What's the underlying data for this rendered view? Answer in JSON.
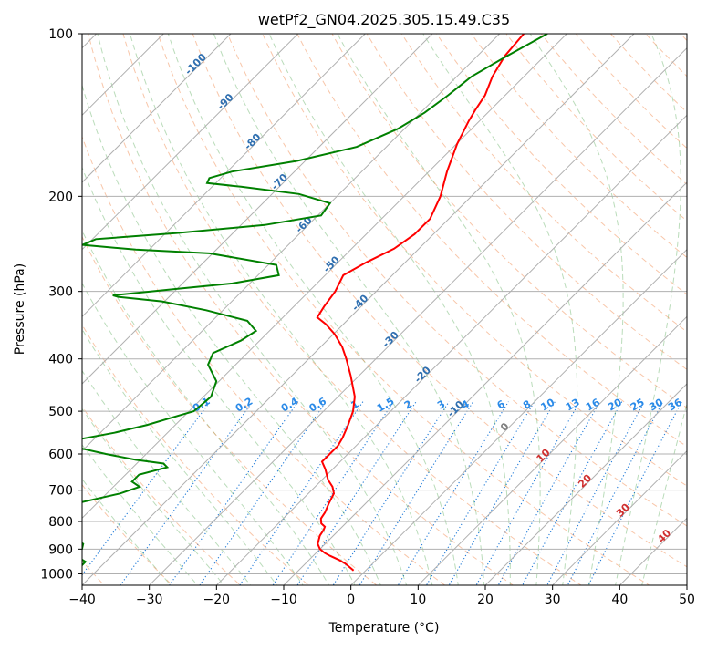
{
  "chart_data": {
    "type": "line",
    "subtype": "skew-t log-p",
    "title": "wetPf2_GN04.2025.305.15.49.C35",
    "xlabel": "Temperature (°C)",
    "ylabel": "Pressure (hPa)",
    "xlim": [
      -40,
      50
    ],
    "ylim": [
      1050,
      100
    ],
    "y_scale": "log",
    "grid": true,
    "x_ticks": [
      "−40",
      "−30",
      "−20",
      "−10",
      "0",
      "10",
      "20",
      "30",
      "40",
      "50"
    ],
    "y_ticks": [
      "100",
      "200",
      "300",
      "400",
      "500",
      "600",
      "700",
      "800",
      "900",
      "1000"
    ],
    "dry_adiabat_labels": [
      "-100",
      "-90",
      "-80",
      "-70",
      "-60",
      "-50",
      "-40",
      "-30",
      "-20",
      "-10"
    ],
    "moist_adiabat_labels": [
      "0",
      "10",
      "20",
      "30",
      "40"
    ],
    "mixing_ratio_labels": [
      "0.1",
      "0.2",
      "0.4",
      "0.6",
      "1",
      "1.5",
      "2",
      "3",
      "4",
      "6",
      "8",
      "10",
      "13",
      "16",
      "20",
      "25",
      "30",
      "36"
    ],
    "series": [
      {
        "label": "temperature",
        "color": "#ff0000",
        "points": [
          [
            986,
            -1.8
          ],
          [
            958,
            -4.0
          ],
          [
            943,
            -5.5
          ],
          [
            926,
            -7.5
          ],
          [
            915,
            -8.7
          ],
          [
            900,
            -10.0
          ],
          [
            880,
            -11.1
          ],
          [
            860,
            -11.7
          ],
          [
            850,
            -12.0
          ],
          [
            830,
            -12.3
          ],
          [
            818,
            -12.6
          ],
          [
            807,
            -13.6
          ],
          [
            790,
            -14.4
          ],
          [
            770,
            -14.7
          ],
          [
            740,
            -15.5
          ],
          [
            710,
            -16.2
          ],
          [
            690,
            -17.4
          ],
          [
            670,
            -19.1
          ],
          [
            640,
            -21.1
          ],
          [
            620,
            -22.7
          ],
          [
            600,
            -22.7
          ],
          [
            580,
            -22.7
          ],
          [
            560,
            -23.2
          ],
          [
            530,
            -24.3
          ],
          [
            500,
            -25.6
          ],
          [
            470,
            -27.5
          ],
          [
            430,
            -31.2
          ],
          [
            400,
            -34.4
          ],
          [
            380,
            -36.8
          ],
          [
            360,
            -39.8
          ],
          [
            345,
            -42.6
          ],
          [
            335,
            -44.9
          ],
          [
            320,
            -45.5
          ],
          [
            300,
            -46.1
          ],
          [
            280,
            -47.3
          ],
          [
            265,
            -45.8
          ],
          [
            250,
            -43.7
          ],
          [
            235,
            -42.8
          ],
          [
            220,
            -42.8
          ],
          [
            200,
            -44.6
          ],
          [
            180,
            -47.3
          ],
          [
            160,
            -49.9
          ],
          [
            145,
            -51.6
          ],
          [
            138,
            -52.3
          ],
          [
            130,
            -53.0
          ],
          [
            120,
            -54.7
          ],
          [
            110,
            -55.9
          ],
          [
            100,
            -56.4
          ]
        ]
      },
      {
        "label": "dewpoint",
        "color": "#008000",
        "points": [
          [
            986,
            -43.0
          ],
          [
            950,
            -43.0
          ],
          [
            930,
            -44.9
          ],
          [
            910,
            -45.4
          ],
          [
            900,
            -45.4
          ],
          [
            880,
            -46.0
          ],
          [
            860,
            -48.0
          ],
          [
            850,
            -49.1
          ],
          [
            845,
            -53.6
          ],
          [
            835,
            -61.6
          ],
          [
            820,
            -67.7
          ],
          [
            800,
            -88.3
          ],
          [
            790,
            -96.9
          ],
          [
            780,
            -86.6
          ],
          [
            768,
            -64.9
          ],
          [
            760,
            -58.9
          ],
          [
            740,
            -53.0
          ],
          [
            710,
            -48.0
          ],
          [
            690,
            -46.1
          ],
          [
            675,
            -48.0
          ],
          [
            655,
            -48.0
          ],
          [
            635,
            -44.9
          ],
          [
            625,
            -46.0
          ],
          [
            615,
            -50.7
          ],
          [
            600,
            -56.0
          ],
          [
            585,
            -60.8
          ],
          [
            565,
            -62.6
          ],
          [
            548,
            -57.9
          ],
          [
            530,
            -54.2
          ],
          [
            510,
            -51.0
          ],
          [
            500,
            -49.3
          ],
          [
            470,
            -48.9
          ],
          [
            440,
            -50.4
          ],
          [
            410,
            -54.1
          ],
          [
            390,
            -55.1
          ],
          [
            370,
            -52.8
          ],
          [
            355,
            -52.0
          ],
          [
            340,
            -54.8
          ],
          [
            325,
            -62.5
          ],
          [
            313,
            -70.4
          ],
          [
            307,
            -77.6
          ],
          [
            305,
            -78.6
          ],
          [
            298,
            -71.3
          ],
          [
            290,
            -62.6
          ],
          [
            280,
            -56.9
          ],
          [
            268,
            -58.8
          ],
          [
            255,
            -70.5
          ],
          [
            251,
            -82.0
          ],
          [
            246,
            -90.6
          ],
          [
            240,
            -89.5
          ],
          [
            234,
            -78.5
          ],
          [
            226,
            -66.5
          ],
          [
            217,
            -59.5
          ],
          [
            206,
            -60.0
          ],
          [
            198,
            -66.0
          ],
          [
            192,
            -75.7
          ],
          [
            189,
            -81.3
          ],
          [
            185,
            -81.7
          ],
          [
            180,
            -79.3
          ],
          [
            172,
            -71.2
          ],
          [
            162,
            -64.4
          ],
          [
            150,
            -61.0
          ],
          [
            140,
            -59.4
          ],
          [
            130,
            -58.5
          ],
          [
            120,
            -57.8
          ],
          [
            110,
            -55.6
          ],
          [
            100,
            -52.9
          ]
        ]
      }
    ]
  }
}
